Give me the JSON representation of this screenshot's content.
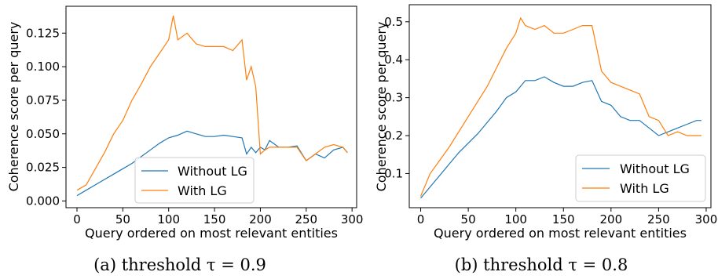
{
  "chart_data": [
    {
      "type": "line",
      "caption": "(a) threshold τ = 0.9",
      "xlabel": "Query ordered on most relevant entities",
      "ylabel": "Coherence score per query",
      "xlim": [
        -12,
        305
      ],
      "ylim": [
        -0.005,
        0.145
      ],
      "xticks": [
        0,
        50,
        100,
        150,
        200,
        250,
        300
      ],
      "yticks": [
        0.0,
        0.025,
        0.05,
        0.075,
        0.1,
        0.125
      ],
      "ytick_labels": [
        "0.000",
        "0.025",
        "0.050",
        "0.075",
        "0.100",
        "0.125"
      ],
      "legend": {
        "placement": "lower-center"
      },
      "series": [
        {
          "name": "Without LG",
          "color": "#1f77b4",
          "x": [
            0,
            10,
            20,
            30,
            40,
            50,
            60,
            70,
            80,
            90,
            100,
            110,
            120,
            130,
            140,
            150,
            160,
            170,
            180,
            185,
            190,
            195,
            200,
            205,
            210,
            220,
            230,
            240,
            250,
            260,
            270,
            280,
            290,
            295
          ],
          "y": [
            0.004,
            0.008,
            0.012,
            0.016,
            0.02,
            0.024,
            0.028,
            0.033,
            0.038,
            0.043,
            0.047,
            0.049,
            0.052,
            0.05,
            0.048,
            0.048,
            0.049,
            0.048,
            0.047,
            0.035,
            0.04,
            0.036,
            0.04,
            0.038,
            0.045,
            0.04,
            0.04,
            0.041,
            0.03,
            0.035,
            0.032,
            0.038,
            0.04,
            0.036
          ]
        },
        {
          "name": "With LG",
          "color": "#ff7f0e",
          "x": [
            0,
            10,
            20,
            30,
            40,
            50,
            60,
            70,
            80,
            90,
            100,
            105,
            110,
            120,
            130,
            140,
            150,
            160,
            170,
            180,
            185,
            190,
            195,
            200,
            205,
            210,
            220,
            230,
            240,
            250,
            260,
            270,
            280,
            290,
            295
          ],
          "y": [
            0.008,
            0.012,
            0.024,
            0.036,
            0.05,
            0.06,
            0.075,
            0.087,
            0.1,
            0.11,
            0.12,
            0.138,
            0.12,
            0.125,
            0.117,
            0.115,
            0.115,
            0.115,
            0.112,
            0.12,
            0.09,
            0.1,
            0.085,
            0.035,
            0.038,
            0.04,
            0.04,
            0.04,
            0.04,
            0.03,
            0.035,
            0.04,
            0.042,
            0.04,
            0.036
          ]
        }
      ]
    },
    {
      "type": "line",
      "caption": "(b) threshold τ = 0.8",
      "xlabel": "Query ordered on most relevant entities",
      "ylabel": "Coherence score per query",
      "xlim": [
        -12,
        305
      ],
      "ylim": [
        0.01,
        0.545
      ],
      "xticks": [
        0,
        50,
        100,
        150,
        200,
        250,
        300
      ],
      "yticks": [
        0.1,
        0.2,
        0.3,
        0.4,
        0.5
      ],
      "ytick_labels": [
        "0.1",
        "0.2",
        "0.3",
        "0.4",
        "0.5"
      ],
      "legend": {
        "placement": "lower-right"
      },
      "series": [
        {
          "name": "Without LG",
          "color": "#1f77b4",
          "x": [
            0,
            10,
            20,
            30,
            40,
            50,
            60,
            70,
            80,
            90,
            100,
            110,
            120,
            130,
            140,
            150,
            160,
            170,
            180,
            190,
            200,
            210,
            220,
            230,
            240,
            250,
            260,
            270,
            280,
            290,
            295
          ],
          "y": [
            0.035,
            0.065,
            0.095,
            0.125,
            0.155,
            0.18,
            0.205,
            0.235,
            0.265,
            0.3,
            0.315,
            0.345,
            0.345,
            0.355,
            0.34,
            0.33,
            0.33,
            0.34,
            0.345,
            0.29,
            0.28,
            0.25,
            0.24,
            0.24,
            0.22,
            0.2,
            0.21,
            0.22,
            0.23,
            0.24,
            0.24
          ]
        },
        {
          "name": "With LG",
          "color": "#ff7f0e",
          "x": [
            0,
            10,
            20,
            30,
            40,
            50,
            60,
            70,
            80,
            90,
            100,
            105,
            110,
            120,
            130,
            140,
            150,
            160,
            170,
            180,
            190,
            200,
            210,
            220,
            230,
            240,
            250,
            260,
            270,
            280,
            290,
            295
          ],
          "y": [
            0.04,
            0.1,
            0.135,
            0.17,
            0.21,
            0.25,
            0.29,
            0.33,
            0.38,
            0.43,
            0.47,
            0.51,
            0.49,
            0.48,
            0.49,
            0.47,
            0.47,
            0.48,
            0.49,
            0.49,
            0.37,
            0.34,
            0.33,
            0.32,
            0.31,
            0.25,
            0.24,
            0.2,
            0.21,
            0.2,
            0.2,
            0.2
          ]
        }
      ]
    }
  ]
}
